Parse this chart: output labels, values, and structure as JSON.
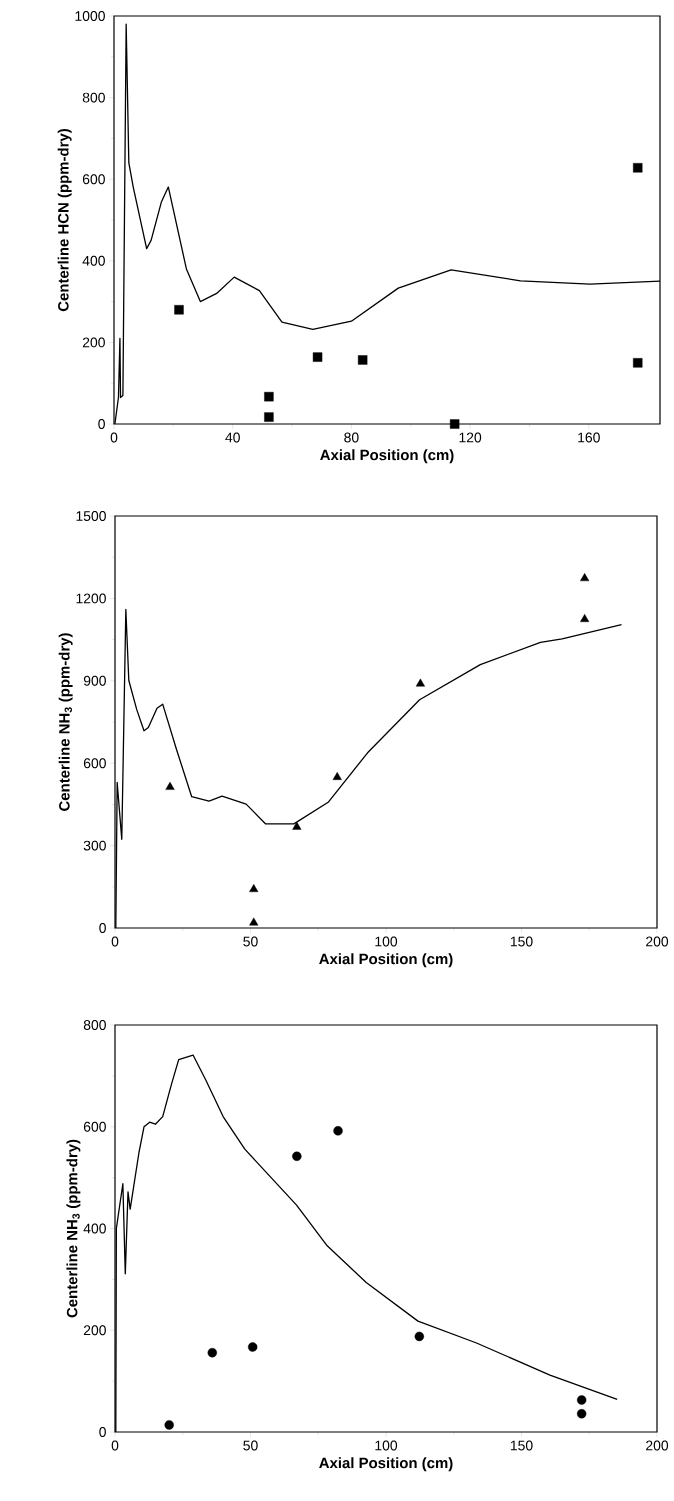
{
  "chart_data": [
    {
      "type": "line",
      "xlabel": "Axial Position   (cm)",
      "ylabel": "Centerline HCN  (ppm-dry)",
      "xlim": [
        0,
        184
      ],
      "ylim": [
        0,
        1000
      ],
      "xticks": [
        0,
        40,
        80,
        120,
        160
      ],
      "yticks": [
        0,
        200,
        400,
        600,
        800,
        1000
      ],
      "series": [
        {
          "color": "#000000",
          "marker": "none",
          "x": [
            0.3,
            1.5,
            2,
            2.2,
            3,
            4.1,
            5,
            6.5,
            11,
            12.5,
            16,
            18.3,
            24.4,
            29.1,
            34.6,
            40.5,
            49,
            56.6,
            67,
            80,
            95.8,
            113.6,
            137,
            160.4,
            184
          ],
          "values": [
            0,
            65,
            210,
            65,
            70,
            980,
            640,
            580,
            430,
            450,
            545,
            581,
            380,
            300,
            320,
            360,
            327,
            250,
            232,
            252,
            333,
            378,
            351,
            343,
            350
          ]
        },
        {
          "type": "scatter",
          "color": "#000000",
          "marker": "square",
          "x": [
            21.9,
            52.2,
            52.2,
            68.6,
            83.8,
            114.8,
            176.5,
            176.5
          ],
          "values": [
            280,
            67,
            17,
            164,
            157,
            0,
            628,
            150
          ]
        }
      ]
    },
    {
      "type": "line",
      "xlabel": "Axial Position   (cm)",
      "ylabel": "Centerline NH$_{3}$  (ppm-dry)",
      "xlim": [
        0,
        200
      ],
      "ylim": [
        0,
        1500
      ],
      "xticks": [
        0,
        50,
        100,
        150,
        200
      ],
      "yticks": [
        0,
        300,
        600,
        900,
        1200,
        1500
      ],
      "series": [
        {
          "color": "#000000",
          "marker": "none",
          "x": [
            0.3,
            0.8,
            2.5,
            4,
            5.1,
            8,
            10.7,
            12.3,
            15.5,
            17.6,
            22.7,
            28.3,
            34.7,
            39.5,
            48.4,
            55.6,
            66,
            78.8,
            93.2,
            112.4,
            134.8,
            157,
            165,
            186.9
          ],
          "values": [
            0,
            530,
            323,
            1160,
            901,
            796,
            718,
            730,
            800,
            815,
            650,
            478,
            462,
            480,
            451,
            379,
            379,
            459,
            638,
            831,
            959,
            1040,
            1053,
            1105
          ]
        },
        {
          "type": "scatter",
          "color": "#000000",
          "marker": "triangle",
          "x": [
            20.3,
            51.2,
            51.2,
            67.1,
            82,
            112.7,
            173.3,
            173.3
          ],
          "values": [
            513,
            141,
            19,
            368,
            549,
            889,
            1273,
            1124
          ]
        }
      ]
    },
    {
      "type": "line",
      "xlabel": "Axial Position   (cm)",
      "ylabel": "Centerline NH$_{3}$  (ppm-dry)",
      "xlim": [
        0,
        200
      ],
      "ylim": [
        0,
        800
      ],
      "xticks": [
        0,
        50,
        100,
        150,
        200
      ],
      "yticks": [
        0,
        200,
        400,
        600,
        800
      ],
      "series": [
        {
          "color": "#000000",
          "marker": "none",
          "x": [
            0.3,
            0.5,
            2.9,
            3.8,
            4.8,
            5.6,
            8.8,
            10.7,
            12.8,
            14.9,
            17.6,
            20.8,
            23.5,
            28.8,
            33.5,
            39.9,
            47.9,
            67,
            78.3,
            92.7,
            111.8,
            133.4,
            160.5,
            185.3
          ],
          "values": [
            0,
            400,
            488,
            311,
            472,
            438,
            548,
            600,
            609,
            605,
            620,
            683,
            732,
            741,
            692,
            620,
            556,
            446,
            366,
            294,
            218,
            175,
            112,
            64
          ]
        },
        {
          "type": "scatter",
          "color": "#000000",
          "marker": "circle",
          "x": [
            20,
            35.9,
            50.8,
            67.1,
            82.3,
            112.3,
            172.2,
            172.2
          ],
          "values": [
            14,
            156,
            167,
            542,
            592,
            188,
            63,
            36
          ]
        }
      ]
    }
  ]
}
